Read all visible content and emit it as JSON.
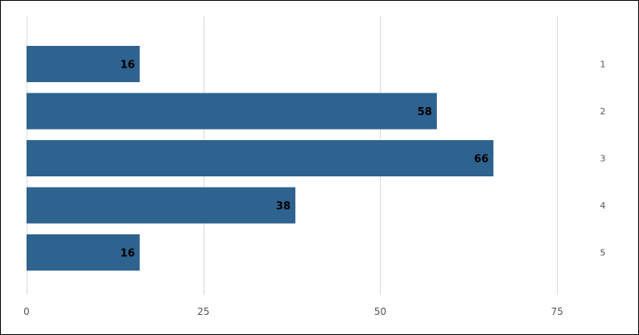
{
  "chart_data": {
    "type": "bar",
    "orientation": "horizontal",
    "categories": [
      "1",
      "2",
      "3",
      "4",
      "5"
    ],
    "values": [
      16,
      58,
      66,
      38,
      16
    ],
    "xlim": [
      0,
      82
    ],
    "xticks": [
      0,
      25,
      50,
      75
    ],
    "title": "",
    "xlabel": "",
    "ylabel": "",
    "grid": true,
    "data_labels": true,
    "category_labels_position": "right",
    "legend": "none",
    "colors": {
      "bar": "#2e628f",
      "grid": "#d9d9d9",
      "tick_text": "#555555",
      "value_text": "#000000"
    }
  }
}
